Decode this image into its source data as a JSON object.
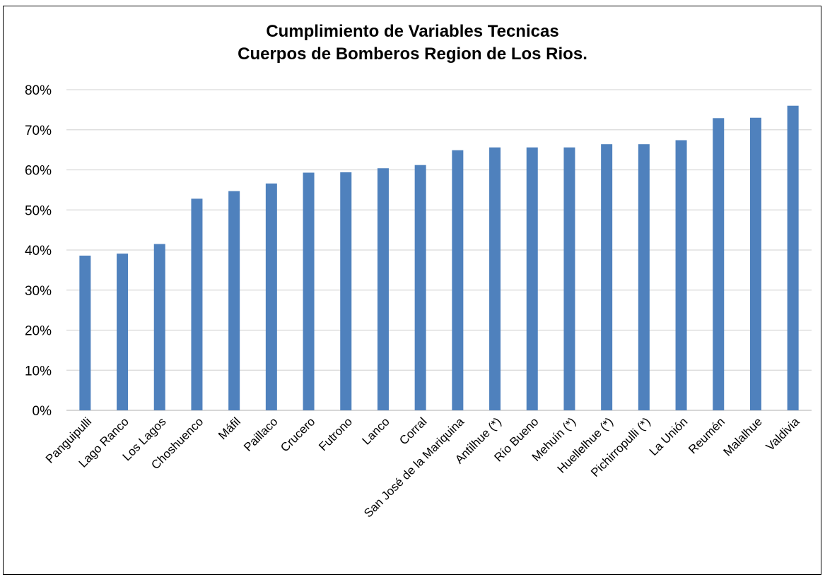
{
  "chart_data": {
    "type": "bar",
    "title_lines": [
      "Cumplimiento de Variables Tecnicas",
      "Cuerpos de Bomberos  Region de  Los Rios."
    ],
    "xlabel": "",
    "ylabel": "",
    "ylim": [
      0,
      0.8
    ],
    "y_ticks": [
      {
        "value": 0.0,
        "label": "0%"
      },
      {
        "value": 0.1,
        "label": "10%"
      },
      {
        "value": 0.2,
        "label": "20%"
      },
      {
        "value": 0.3,
        "label": "30%"
      },
      {
        "value": 0.4,
        "label": "40%"
      },
      {
        "value": 0.5,
        "label": "50%"
      },
      {
        "value": 0.6,
        "label": "60%"
      },
      {
        "value": 0.7,
        "label": "70%"
      },
      {
        "value": 0.8,
        "label": "80%"
      }
    ],
    "grid": true,
    "legend": "none",
    "bar_color": "#4f81bd",
    "grid_color": "#d9d9d9",
    "categories": [
      "Panguipulli",
      "Lago Ranco",
      "Los Lagos",
      "Choshuenco",
      "Máfil",
      "Paillaco",
      "Crucero",
      "Futrono",
      "Lanco",
      "Corral",
      "San José de la Mariquina",
      "Antilhue (*)",
      "Río Bueno",
      "Mehuín (*)",
      "Huellelhue (*)",
      "Pichirropulli (*)",
      "La Unión",
      "Reumén",
      "Malalhue",
      "Valdivia"
    ],
    "values": [
      0.386,
      0.391,
      0.415,
      0.528,
      0.547,
      0.566,
      0.593,
      0.594,
      0.604,
      0.612,
      0.649,
      0.656,
      0.656,
      0.656,
      0.664,
      0.664,
      0.674,
      0.729,
      0.73,
      0.76
    ]
  }
}
